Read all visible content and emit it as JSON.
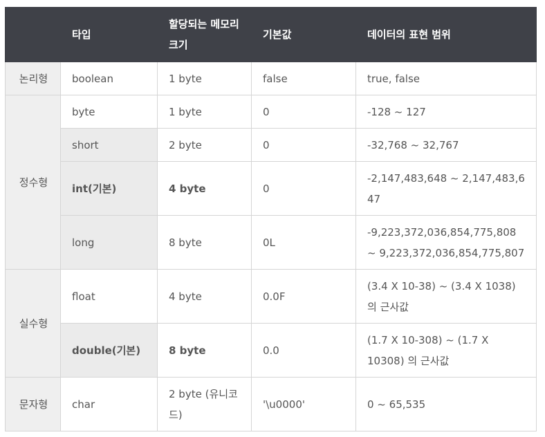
{
  "header": {
    "col_group": "",
    "col_type": "타입",
    "col_memory": "할당되는 메모리 크기",
    "col_default": "기본값",
    "col_range": "데이터의 표현 범위"
  },
  "groups": {
    "logical": "논리형",
    "integer": "정수형",
    "real": "실수형",
    "char": "문자형"
  },
  "rows": [
    {
      "type": "boolean",
      "memory": "1 byte",
      "default": "false",
      "range": "true, false"
    },
    {
      "type": "byte",
      "memory": "1 byte",
      "default": "0",
      "range": "-128 ~ 127"
    },
    {
      "type": "short",
      "memory": "2 byte",
      "default": "0",
      "range": "-32,768 ~ 32,767"
    },
    {
      "type": "int(기본)",
      "memory": "4 byte",
      "default": "0",
      "range": "-2,147,483,648 ~ 2,147,483,647"
    },
    {
      "type": "long",
      "memory": "8 byte",
      "default": "0L",
      "range": "-9,223,372,036,854,775,808 ~ 9,223,372,036,854,775,807"
    },
    {
      "type": "float",
      "memory": "4 byte",
      "default": "0.0F",
      "range": "(3.4 X 10-38) ~ (3.4 X 1038) 의 근사값"
    },
    {
      "type": "double(기본)",
      "memory": "8 byte",
      "default": "0.0",
      "range": "(1.7 X 10-308) ~ (1.7 X 10308) 의 근사값"
    },
    {
      "type": "char",
      "memory": "2 byte (유니코드)",
      "default": "'\\u0000'",
      "range": "0 ~ 65,535"
    }
  ]
}
